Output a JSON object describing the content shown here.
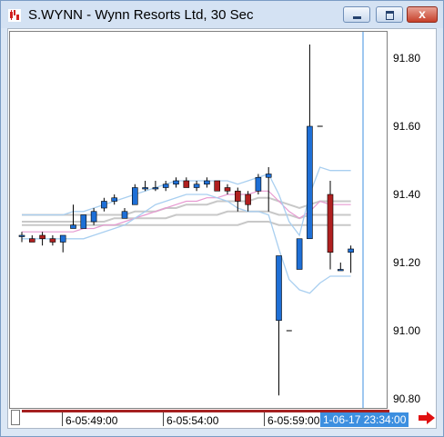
{
  "window": {
    "title": "S.WYNN - Wynn Resorts Ltd, 30 Sec",
    "close_glyph": "x"
  },
  "icons": [
    "chart-app-icon",
    "minimize-icon",
    "maximize-icon",
    "close-icon",
    "scroll-right-arrow-icon"
  ],
  "colors": {
    "up_candle": "#1e6fd6",
    "down_candle": "#b02020",
    "cursor_line": "#3c8fe0",
    "bollinger_band": "#a9cff0",
    "moving_average_pink": "#e79ad1",
    "moving_average_gray": "#c8c8c8",
    "time_axis_bar": "#a52020"
  },
  "y_axis": {
    "ticks": [
      "91.80",
      "91.60",
      "91.40",
      "91.20",
      "91.00",
      "90.80"
    ]
  },
  "x_axis": {
    "ticks": [
      "6-05:49:00",
      "6-05:54:00",
      "6-05:59:00"
    ],
    "cursor_label": "1-06-17 23:34:00"
  },
  "chart_data": {
    "type": "candlestick",
    "symbol": "S.WYNN",
    "interval": "30 Sec",
    "ylim": [
      90.78,
      91.88
    ],
    "candles": [
      {
        "o": 91.28,
        "h": 91.29,
        "l": 91.26,
        "c": 91.28
      },
      {
        "o": 91.27,
        "h": 91.28,
        "l": 91.26,
        "c": 91.26
      },
      {
        "o": 91.28,
        "h": 91.29,
        "l": 91.25,
        "c": 91.27
      },
      {
        "o": 91.27,
        "h": 91.28,
        "l": 91.25,
        "c": 91.26
      },
      {
        "o": 91.26,
        "h": 91.28,
        "l": 91.23,
        "c": 91.28
      },
      {
        "o": 91.3,
        "h": 91.37,
        "l": 91.3,
        "c": 91.31
      },
      {
        "o": 91.3,
        "h": 91.34,
        "l": 91.3,
        "c": 91.34
      },
      {
        "o": 91.32,
        "h": 91.36,
        "l": 91.31,
        "c": 91.35
      },
      {
        "o": 91.36,
        "h": 91.39,
        "l": 91.35,
        "c": 91.38
      },
      {
        "o": 91.38,
        "h": 91.4,
        "l": 91.37,
        "c": 91.39
      },
      {
        "o": 91.33,
        "h": 91.36,
        "l": 91.33,
        "c": 91.35
      },
      {
        "o": 91.37,
        "h": 91.43,
        "l": 91.37,
        "c": 91.42
      },
      {
        "o": 91.42,
        "h": 91.44,
        "l": 91.41,
        "c": 91.42
      },
      {
        "o": 91.42,
        "h": 91.44,
        "l": 91.41,
        "c": 91.42
      },
      {
        "o": 91.42,
        "h": 91.44,
        "l": 91.41,
        "c": 91.43
      },
      {
        "o": 91.43,
        "h": 91.45,
        "l": 91.42,
        "c": 91.44
      },
      {
        "o": 91.44,
        "h": 91.45,
        "l": 91.42,
        "c": 91.42
      },
      {
        "o": 91.42,
        "h": 91.44,
        "l": 91.41,
        "c": 91.43
      },
      {
        "o": 91.43,
        "h": 91.45,
        "l": 91.42,
        "c": 91.44
      },
      {
        "o": 91.44,
        "h": 91.44,
        "l": 91.41,
        "c": 91.41
      },
      {
        "o": 91.42,
        "h": 91.43,
        "l": 91.4,
        "c": 91.41
      },
      {
        "o": 91.41,
        "h": 91.42,
        "l": 91.35,
        "c": 91.38
      },
      {
        "o": 91.4,
        "h": 91.41,
        "l": 91.35,
        "c": 91.37
      },
      {
        "o": 91.41,
        "h": 91.46,
        "l": 91.4,
        "c": 91.45
      },
      {
        "o": 91.45,
        "h": 91.48,
        "l": 91.35,
        "c": 91.46
      },
      {
        "o": 91.03,
        "h": 91.22,
        "l": 90.81,
        "c": 91.22
      },
      {
        "o": 91.0,
        "h": 91.0,
        "l": 91.0,
        "c": 91.0
      },
      {
        "o": 91.18,
        "h": 91.27,
        "l": 91.18,
        "c": 91.27
      },
      {
        "o": 91.27,
        "h": 91.84,
        "l": 91.27,
        "c": 91.6
      },
      {
        "o": 91.6,
        "h": 91.6,
        "l": 91.6,
        "c": 91.6
      },
      {
        "o": 91.4,
        "h": 91.44,
        "l": 91.18,
        "c": 91.23
      },
      {
        "o": 91.18,
        "h": 91.2,
        "l": 91.18,
        "c": 91.18
      },
      {
        "o": 91.23,
        "h": 91.25,
        "l": 91.17,
        "c": 91.24
      }
    ],
    "bollinger_upper": [
      91.34,
      91.34,
      91.34,
      91.34,
      91.34,
      91.35,
      91.35,
      91.36,
      91.37,
      91.38,
      91.39,
      91.4,
      91.41,
      91.42,
      91.43,
      91.44,
      91.44,
      91.44,
      91.44,
      91.44,
      91.44,
      91.43,
      91.44,
      91.45,
      91.46,
      91.4,
      91.32,
      91.28,
      91.4,
      91.48,
      91.47,
      91.47,
      91.47
    ],
    "bollinger_lower": [
      91.27,
      91.27,
      91.27,
      91.27,
      91.27,
      91.27,
      91.27,
      91.28,
      91.29,
      91.3,
      91.31,
      91.33,
      91.35,
      91.37,
      91.38,
      91.39,
      91.4,
      91.4,
      91.4,
      91.39,
      91.38,
      91.36,
      91.35,
      91.35,
      91.34,
      91.24,
      91.15,
      91.12,
      91.11,
      91.14,
      91.16,
      91.16,
      91.16
    ],
    "ma_pink": [
      91.29,
      91.29,
      91.29,
      91.29,
      91.29,
      91.29,
      91.3,
      91.3,
      91.31,
      91.31,
      91.32,
      91.33,
      91.34,
      91.35,
      91.36,
      91.37,
      91.38,
      91.38,
      91.39,
      91.39,
      91.4,
      91.4,
      91.4,
      91.41,
      91.41,
      91.38,
      91.35,
      91.33,
      91.35,
      91.38,
      91.37,
      91.37,
      91.37
    ],
    "ma_gray_1": [
      91.34,
      91.34,
      91.34,
      91.34,
      91.34,
      91.34,
      91.34,
      91.34,
      91.34,
      91.34,
      91.34,
      91.35,
      91.35,
      91.35,
      91.36,
      91.36,
      91.37,
      91.37,
      91.37,
      91.38,
      91.38,
      91.38,
      91.38,
      91.39,
      91.39,
      91.38,
      91.37,
      91.36,
      91.37,
      91.38,
      91.38,
      91.38,
      91.38
    ],
    "ma_gray_2": [
      91.32,
      91.32,
      91.32,
      91.32,
      91.32,
      91.32,
      91.32,
      91.32,
      91.32,
      91.33,
      91.33,
      91.33,
      91.33,
      91.33,
      91.33,
      91.34,
      91.34,
      91.34,
      91.34,
      91.34,
      91.35,
      91.35,
      91.35,
      91.35,
      91.35,
      91.34,
      91.34,
      91.33,
      91.34,
      91.34,
      91.34,
      91.34,
      91.34
    ],
    "ma_gray_3": [
      91.31,
      91.31,
      91.31,
      91.31,
      91.31,
      91.31,
      91.31,
      91.31,
      91.31,
      91.31,
      91.31,
      91.31,
      91.31,
      91.31,
      91.31,
      91.31,
      91.31,
      91.31,
      91.31,
      91.31,
      91.31,
      91.31,
      91.32,
      91.32,
      91.32,
      91.31,
      91.31,
      91.31,
      91.31,
      91.31,
      91.31,
      91.31,
      91.31
    ]
  }
}
